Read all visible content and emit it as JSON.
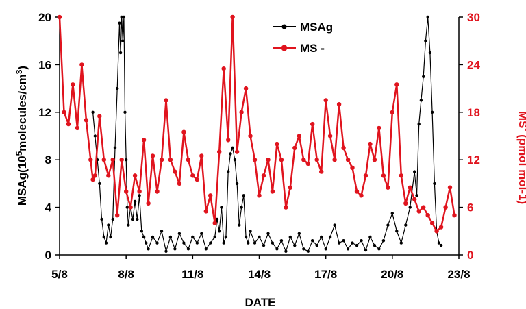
{
  "chart_data": {
    "type": "line",
    "xlabel": "DATE",
    "ylabel_left": {
      "prefix": "MSAg(10",
      "sup": "5",
      "rest": "molecules/cm",
      "sup2": "3",
      "close": ")"
    },
    "ylabel_right": {
      "main": "MS",
      "sup": "-",
      "rest": " (pmol mol-1)"
    },
    "x_ticks": [
      "5/8",
      "8/8",
      "11/8",
      "14/8",
      "17/8",
      "20/8",
      "23/8"
    ],
    "x_tick_values": [
      5,
      8,
      11,
      14,
      17,
      20,
      23
    ],
    "xlim": [
      5,
      23
    ],
    "ylim_left": [
      0,
      20
    ],
    "yticks_left": [
      "0",
      "4",
      "8",
      "12",
      "16",
      "20"
    ],
    "ylim_right": [
      0,
      30
    ],
    "yticks_right": [
      "0",
      "6",
      "12",
      "18",
      "24",
      "30"
    ],
    "legend_position": "top-center",
    "colors": {
      "msag": "#000000",
      "ms": "#e0141e"
    },
    "series": [
      {
        "name": "MSAg",
        "axis": "left",
        "x": [
          6.5,
          6.6,
          6.7,
          6.8,
          6.9,
          7.0,
          7.1,
          7.2,
          7.3,
          7.4,
          7.5,
          7.6,
          7.7,
          7.75,
          7.8,
          7.85,
          7.9,
          7.95,
          8.0,
          8.05,
          8.1,
          8.2,
          8.3,
          8.4,
          8.5,
          8.6,
          8.7,
          8.8,
          8.9,
          9.0,
          9.2,
          9.4,
          9.6,
          9.8,
          10.0,
          10.2,
          10.4,
          10.6,
          10.8,
          11.0,
          11.2,
          11.4,
          11.6,
          11.8,
          12.0,
          12.1,
          12.2,
          12.3,
          12.4,
          12.5,
          12.6,
          12.7,
          12.8,
          12.9,
          13.0,
          13.1,
          13.2,
          13.3,
          13.4,
          13.5,
          13.6,
          13.8,
          14.0,
          14.2,
          14.4,
          14.6,
          14.8,
          15.0,
          15.2,
          15.4,
          15.6,
          15.8,
          16.0,
          16.2,
          16.4,
          16.6,
          16.8,
          17.0,
          17.2,
          17.4,
          17.6,
          17.8,
          18.0,
          18.2,
          18.4,
          18.6,
          18.8,
          19.0,
          19.2,
          19.4,
          19.6,
          19.8,
          20.0,
          20.2,
          20.4,
          20.6,
          20.8,
          21.0,
          21.1,
          21.2,
          21.3,
          21.4,
          21.5,
          21.6,
          21.7,
          21.8,
          21.9,
          22.0,
          22.1,
          22.2
        ],
        "values": [
          12.0,
          10.0,
          8.0,
          6.0,
          3.0,
          1.5,
          1.0,
          2.5,
          1.5,
          3.0,
          9.0,
          14.0,
          19.5,
          17.0,
          20.0,
          18.0,
          20.0,
          12.0,
          8.0,
          4.0,
          2.5,
          4.0,
          3.0,
          4.5,
          3.0,
          5.0,
          2.0,
          1.5,
          1.0,
          0.5,
          1.5,
          1.0,
          2.0,
          0.3,
          1.5,
          0.5,
          1.8,
          1.0,
          0.5,
          1.5,
          1.0,
          1.8,
          0.5,
          1.0,
          1.5,
          3.0,
          2.0,
          4.0,
          1.0,
          1.5,
          7.0,
          8.5,
          9.0,
          8.0,
          6.0,
          2.5,
          4.0,
          5.0,
          1.5,
          1.0,
          2.0,
          1.0,
          1.5,
          0.8,
          1.8,
          1.0,
          0.5,
          1.2,
          0.3,
          1.5,
          0.8,
          1.8,
          0.5,
          0.3,
          1.2,
          0.8,
          1.5,
          0.5,
          1.5,
          2.5,
          1.0,
          1.2,
          0.5,
          1.0,
          0.8,
          1.2,
          0.4,
          1.5,
          0.8,
          0.5,
          1.2,
          2.5,
          3.5,
          2.0,
          1.0,
          2.5,
          4.0,
          7.0,
          5.0,
          11.0,
          13.0,
          15.0,
          18.0,
          20.0,
          17.0,
          12.0,
          6.0,
          2.0,
          1.0,
          0.8
        ]
      },
      {
        "name": "MS -",
        "axis": "right",
        "x": [
          5.0,
          5.2,
          5.4,
          5.6,
          5.8,
          6.0,
          6.2,
          6.4,
          6.5,
          6.6,
          6.8,
          7.0,
          7.2,
          7.4,
          7.6,
          7.8,
          8.0,
          8.2,
          8.4,
          8.6,
          8.8,
          9.0,
          9.2,
          9.4,
          9.6,
          9.8,
          10.0,
          10.2,
          10.4,
          10.6,
          10.8,
          11.0,
          11.2,
          11.4,
          11.6,
          11.8,
          12.0,
          12.2,
          12.4,
          12.6,
          12.8,
          13.0,
          13.2,
          13.4,
          13.6,
          13.8,
          14.0,
          14.2,
          14.4,
          14.6,
          14.8,
          15.0,
          15.2,
          15.4,
          15.6,
          15.8,
          16.0,
          16.2,
          16.4,
          16.6,
          16.8,
          17.0,
          17.2,
          17.4,
          17.6,
          17.8,
          18.0,
          18.2,
          18.4,
          18.6,
          18.8,
          19.0,
          19.2,
          19.4,
          19.6,
          19.8,
          20.0,
          20.2,
          20.4,
          20.6,
          20.8,
          21.0,
          21.2,
          21.4,
          21.6,
          21.8,
          22.0,
          22.2,
          22.4,
          22.6,
          22.8
        ],
        "values": [
          30.0,
          18.0,
          16.5,
          21.5,
          16.0,
          24.0,
          17.0,
          12.0,
          9.5,
          10.0,
          17.5,
          12.0,
          10.0,
          12.0,
          5.0,
          12.0,
          8.0,
          6.0,
          10.0,
          8.0,
          14.5,
          6.5,
          12.5,
          8.0,
          12.0,
          19.5,
          12.0,
          10.5,
          9.0,
          15.5,
          12.0,
          10.0,
          9.5,
          12.5,
          5.5,
          7.5,
          4.0,
          13.0,
          23.5,
          14.5,
          30.0,
          13.0,
          18.0,
          21.0,
          15.0,
          12.0,
          7.5,
          10.0,
          12.0,
          8.0,
          14.0,
          12.0,
          6.0,
          8.5,
          13.5,
          15.0,
          12.0,
          11.5,
          16.5,
          12.0,
          10.5,
          19.5,
          15.0,
          12.0,
          19.0,
          13.5,
          12.0,
          11.0,
          8.0,
          7.5,
          10.0,
          14.0,
          12.0,
          16.0,
          10.0,
          8.5,
          18.0,
          21.5,
          10.0,
          6.5,
          8.5,
          7.0,
          5.5,
          6.0,
          5.0,
          4.0,
          3.0,
          3.5,
          6.0,
          8.5,
          5.0
        ]
      }
    ]
  }
}
